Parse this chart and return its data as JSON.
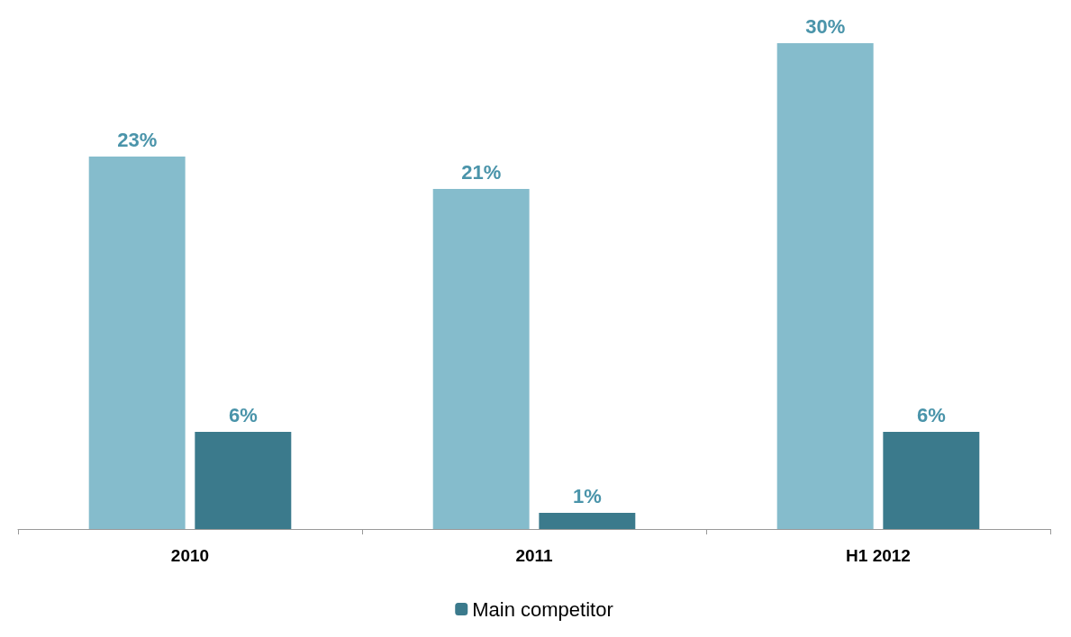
{
  "chart_data": {
    "type": "bar",
    "categories": [
      "2010",
      "2011",
      "H1 2012"
    ],
    "series": [
      {
        "color": "#85bccc",
        "values": [
          23,
          21,
          30
        ],
        "value_labels": [
          "23%",
          "21%",
          "30%"
        ]
      },
      {
        "name": "Main competitor",
        "color": "#3b7a8c",
        "values": [
          6,
          1,
          6
        ],
        "value_labels": [
          "6%",
          "1%",
          "6%"
        ]
      }
    ],
    "ylim": [
      0,
      30
    ],
    "legend": "bottom",
    "grid": false
  }
}
